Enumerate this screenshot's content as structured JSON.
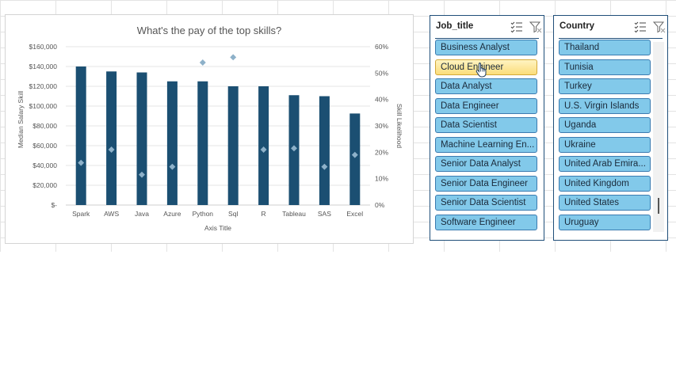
{
  "colors": {
    "bar": "#1b4f72",
    "marker": "#8eb1c9",
    "slicer_item": "#82c9ea",
    "slicer_hover": "#fbdd7a",
    "slicer_border": "#1f4e79"
  },
  "icons": {
    "multi_select": "multi-select-icon",
    "clear_filter": "clear-filter-icon",
    "cursor": "hand-cursor-icon"
  },
  "chart_data": {
    "type": "bar",
    "title": "What's the pay of the top skills?",
    "xlabel": "Axis Title",
    "ylabel": "Median Salary Skill",
    "y2label": "Skill Likelihood",
    "categories": [
      "Spark",
      "AWS",
      "Java",
      "Azure",
      "Python",
      "Sql",
      "R",
      "Tableau",
      "SAS",
      "Excel"
    ],
    "series": [
      {
        "name": "Median Salary Skill",
        "type": "bar",
        "axis": "left",
        "values": [
          140000,
          135000,
          134000,
          125000,
          125000,
          120000,
          120000,
          111000,
          110000,
          92500
        ]
      },
      {
        "name": "Skill Likelihood",
        "type": "scatter",
        "axis": "right",
        "values": [
          16,
          21,
          11.5,
          14.5,
          54,
          56,
          21,
          21.5,
          14.5,
          19
        ]
      }
    ],
    "ylim": [
      0,
      160000
    ],
    "y2lim": [
      0,
      60
    ],
    "yticks": [
      "$-",
      "$20,000",
      "$40,000",
      "$60,000",
      "$80,000",
      "$100,000",
      "$120,000",
      "$140,000",
      "$160,000"
    ],
    "y2ticks": [
      "0%",
      "10%",
      "20%",
      "30%",
      "40%",
      "50%",
      "60%"
    ],
    "grid": true,
    "legend": "none"
  },
  "job_slicer": {
    "title": "Job_title",
    "hovered": "Cloud Engineer",
    "items": [
      "Business Analyst",
      "Cloud Engineer",
      "Data Analyst",
      "Data Engineer",
      "Data Scientist",
      "Machine Learning En...",
      "Senior Data Analyst",
      "Senior Data Engineer",
      "Senior Data Scientist",
      "Software Engineer"
    ]
  },
  "country_slicer": {
    "title": "Country",
    "items": [
      "Thailand",
      "Tunisia",
      "Turkey",
      "U.S. Virgin Islands",
      "Uganda",
      "Ukraine",
      "United Arab Emira...",
      "United Kingdom",
      "United States",
      "Uruguay"
    ]
  }
}
